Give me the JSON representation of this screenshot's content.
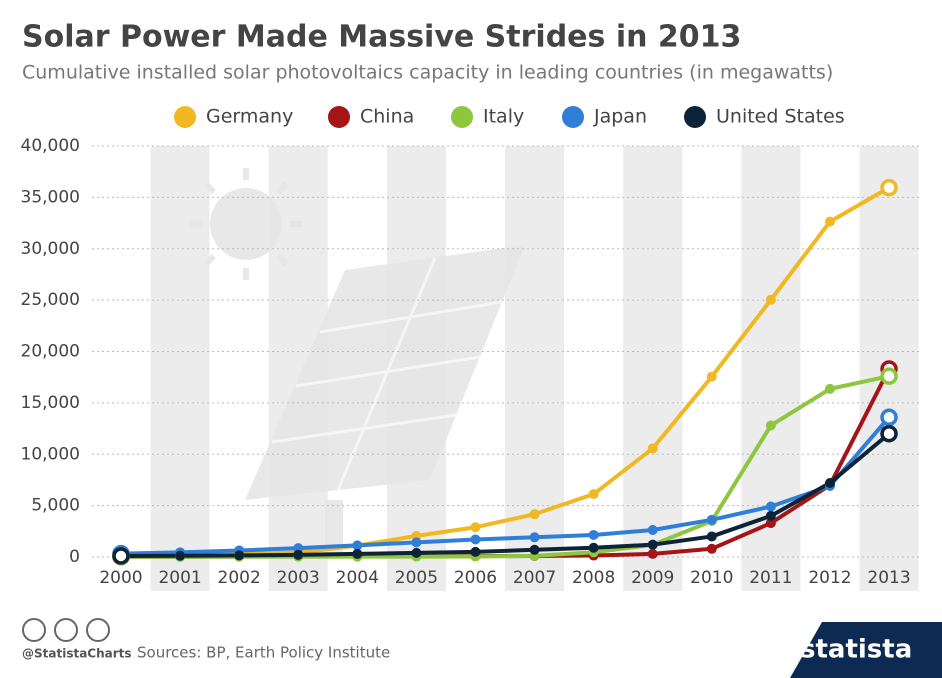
{
  "chart_data": {
    "type": "line",
    "title": "Solar Power Made Massive Strides in 2013",
    "subtitle": "Cumulative installed solar photovoltaics capacity in leading countries (in megawatts)",
    "categories": [
      "2000",
      "2001",
      "2002",
      "2003",
      "2004",
      "2005",
      "2006",
      "2007",
      "2008",
      "2009",
      "2010",
      "2011",
      "2012",
      "2013"
    ],
    "series": [
      {
        "name": "Germany",
        "color": "#f0b823",
        "values": [
          76,
          186,
          296,
          435,
          1105,
          2056,
          2899,
          4170,
          6120,
          10566,
          17554,
          25039,
          32643,
          35948
        ]
      },
      {
        "name": "China",
        "color": "#a51416",
        "values": [
          19,
          24,
          42,
          52,
          62,
          70,
          80,
          100,
          140,
          300,
          800,
          3300,
          7000,
          18300
        ]
      },
      {
        "name": "Italy",
        "color": "#8dc63f",
        "values": [
          19,
          20,
          22,
          26,
          31,
          34,
          45,
          110,
          458,
          1181,
          3502,
          12803,
          16361,
          17600
        ]
      },
      {
        "name": "Japan",
        "color": "#2f7ed8",
        "values": [
          330,
          453,
          637,
          860,
          1132,
          1422,
          1708,
          1919,
          2144,
          2627,
          3618,
          4914,
          6914,
          13600
        ]
      },
      {
        "name": "United States",
        "color": "#0d2337",
        "values": [
          100,
          120,
          160,
          210,
          300,
          400,
          500,
          700,
          900,
          1200,
          2000,
          4000,
          7200,
          12000
        ]
      }
    ],
    "ylim": [
      0,
      40000
    ],
    "yticks": [
      0,
      {
        "value": 5000,
        "label": "5,000"
      },
      {
        "value": 10000,
        "label": "10,000"
      },
      {
        "value": 15000,
        "label": "15,000"
      },
      {
        "value": 20000,
        "label": "20,000"
      },
      {
        "value": 25000,
        "label": "25,000"
      },
      {
        "value": 30000,
        "label": "30,000"
      },
      {
        "value": 35000,
        "label": "35,000"
      },
      {
        "value": 40000,
        "label": "40,000"
      }
    ],
    "grid": true,
    "legend": "top"
  },
  "footer": {
    "handle": "@StatistaCharts",
    "source": "Sources: BP, Earth Policy Institute",
    "brand": "statista"
  }
}
